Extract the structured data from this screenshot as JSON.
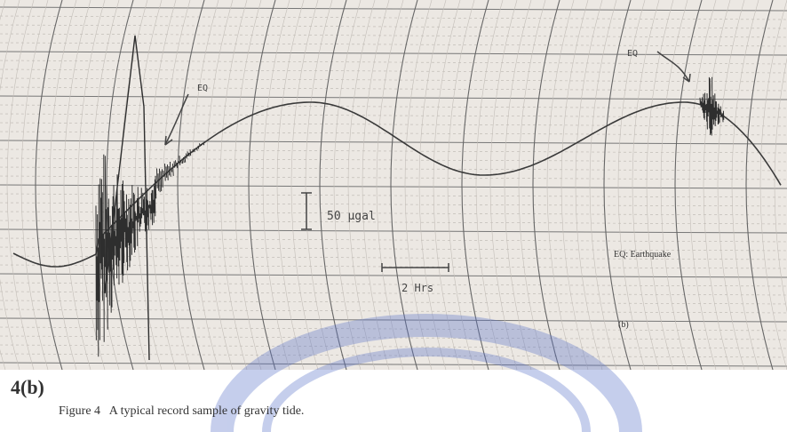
{
  "figure": {
    "annotations": {
      "eq_left": "EQ",
      "eq_right": "EQ",
      "scale_vertical": "50 μgal",
      "scale_horizontal": "2 Hrs",
      "legend": "EQ: Earthquake",
      "sub_label": "(b)"
    },
    "panel_label": "4(b)",
    "caption": "Figure 4   A typical record sample of gravity tide."
  }
}
